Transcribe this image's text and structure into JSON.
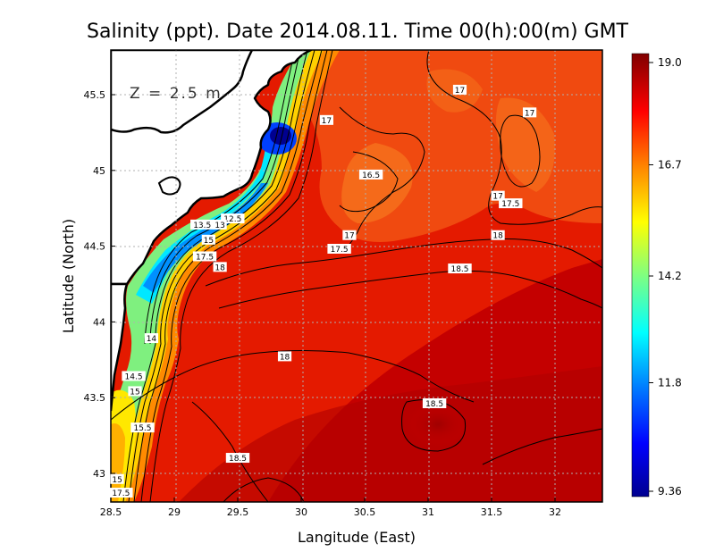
{
  "chart_data": {
    "type": "heatmap",
    "title": "Salinity (ppt). Date 2014.08.11. Time 00(h):00(m) GMT",
    "xlabel": "Langitude (East)",
    "ylabel": "Latitude (North)",
    "annotation": "Z = 2.5 m",
    "xlim": [
      28.5,
      32.4
    ],
    "ylim": [
      42.8,
      45.8
    ],
    "x_ticks": [
      28.5,
      29,
      29.5,
      30,
      30.5,
      31,
      31.5,
      32
    ],
    "x_tick_labels": [
      "28.5",
      "29",
      "29.5",
      "30",
      "30.5",
      "31",
      "31.5",
      "32"
    ],
    "y_ticks": [
      43,
      43.5,
      44,
      44.5,
      45,
      45.5
    ],
    "y_tick_labels": [
      "43",
      "43.5",
      "44",
      "44.5",
      "45",
      "45.5"
    ],
    "grid": true,
    "colorbar": {
      "min": 9.36,
      "max": 19.0,
      "tick_values": [
        19.0,
        16.7,
        14.2,
        11.8,
        9.36
      ],
      "tick_labels": [
        "19.0",
        "16.7",
        "14.2",
        "11.8",
        "9.36"
      ],
      "colormap": [
        "#00008f",
        "#0000ff",
        "#0080ff",
        "#00ffff",
        "#80ff80",
        "#ffff00",
        "#ff8000",
        "#ff0000",
        "#800000"
      ]
    },
    "contour_labels": [
      {
        "text": "17",
        "lon": 31.25,
        "lat": 45.53
      },
      {
        "text": "17",
        "lon": 31.8,
        "lat": 45.38
      },
      {
        "text": "17",
        "lon": 30.2,
        "lat": 45.33
      },
      {
        "text": "16.5",
        "lon": 30.55,
        "lat": 44.97
      },
      {
        "text": "17",
        "lon": 31.55,
        "lat": 44.83
      },
      {
        "text": "17.5",
        "lon": 31.65,
        "lat": 44.78
      },
      {
        "text": "17",
        "lon": 30.38,
        "lat": 44.57
      },
      {
        "text": "17.5",
        "lon": 30.3,
        "lat": 44.48
      },
      {
        "text": "18",
        "lon": 31.55,
        "lat": 44.57
      },
      {
        "text": "18.5",
        "lon": 31.25,
        "lat": 44.35
      },
      {
        "text": "12.5",
        "lon": 29.46,
        "lat": 44.68
      },
      {
        "text": "13.5",
        "lon": 29.22,
        "lat": 44.64
      },
      {
        "text": "13",
        "lon": 29.36,
        "lat": 44.64
      },
      {
        "text": "15",
        "lon": 29.27,
        "lat": 44.54
      },
      {
        "text": "17.5",
        "lon": 29.24,
        "lat": 44.43
      },
      {
        "text": "18",
        "lon": 29.36,
        "lat": 44.36
      },
      {
        "text": "14",
        "lon": 28.82,
        "lat": 43.89
      },
      {
        "text": "18",
        "lon": 29.87,
        "lat": 43.77
      },
      {
        "text": "14.5",
        "lon": 28.68,
        "lat": 43.64
      },
      {
        "text": "15",
        "lon": 28.69,
        "lat": 43.54
      },
      {
        "text": "18.5",
        "lon": 31.05,
        "lat": 43.46
      },
      {
        "text": "15.5",
        "lon": 28.75,
        "lat": 43.3
      },
      {
        "text": "18.5",
        "lon": 29.5,
        "lat": 43.1
      },
      {
        "text": "15",
        "lon": 28.55,
        "lat": 42.96
      },
      {
        "text": "17.5",
        "lon": 28.58,
        "lat": 42.87
      }
    ]
  }
}
